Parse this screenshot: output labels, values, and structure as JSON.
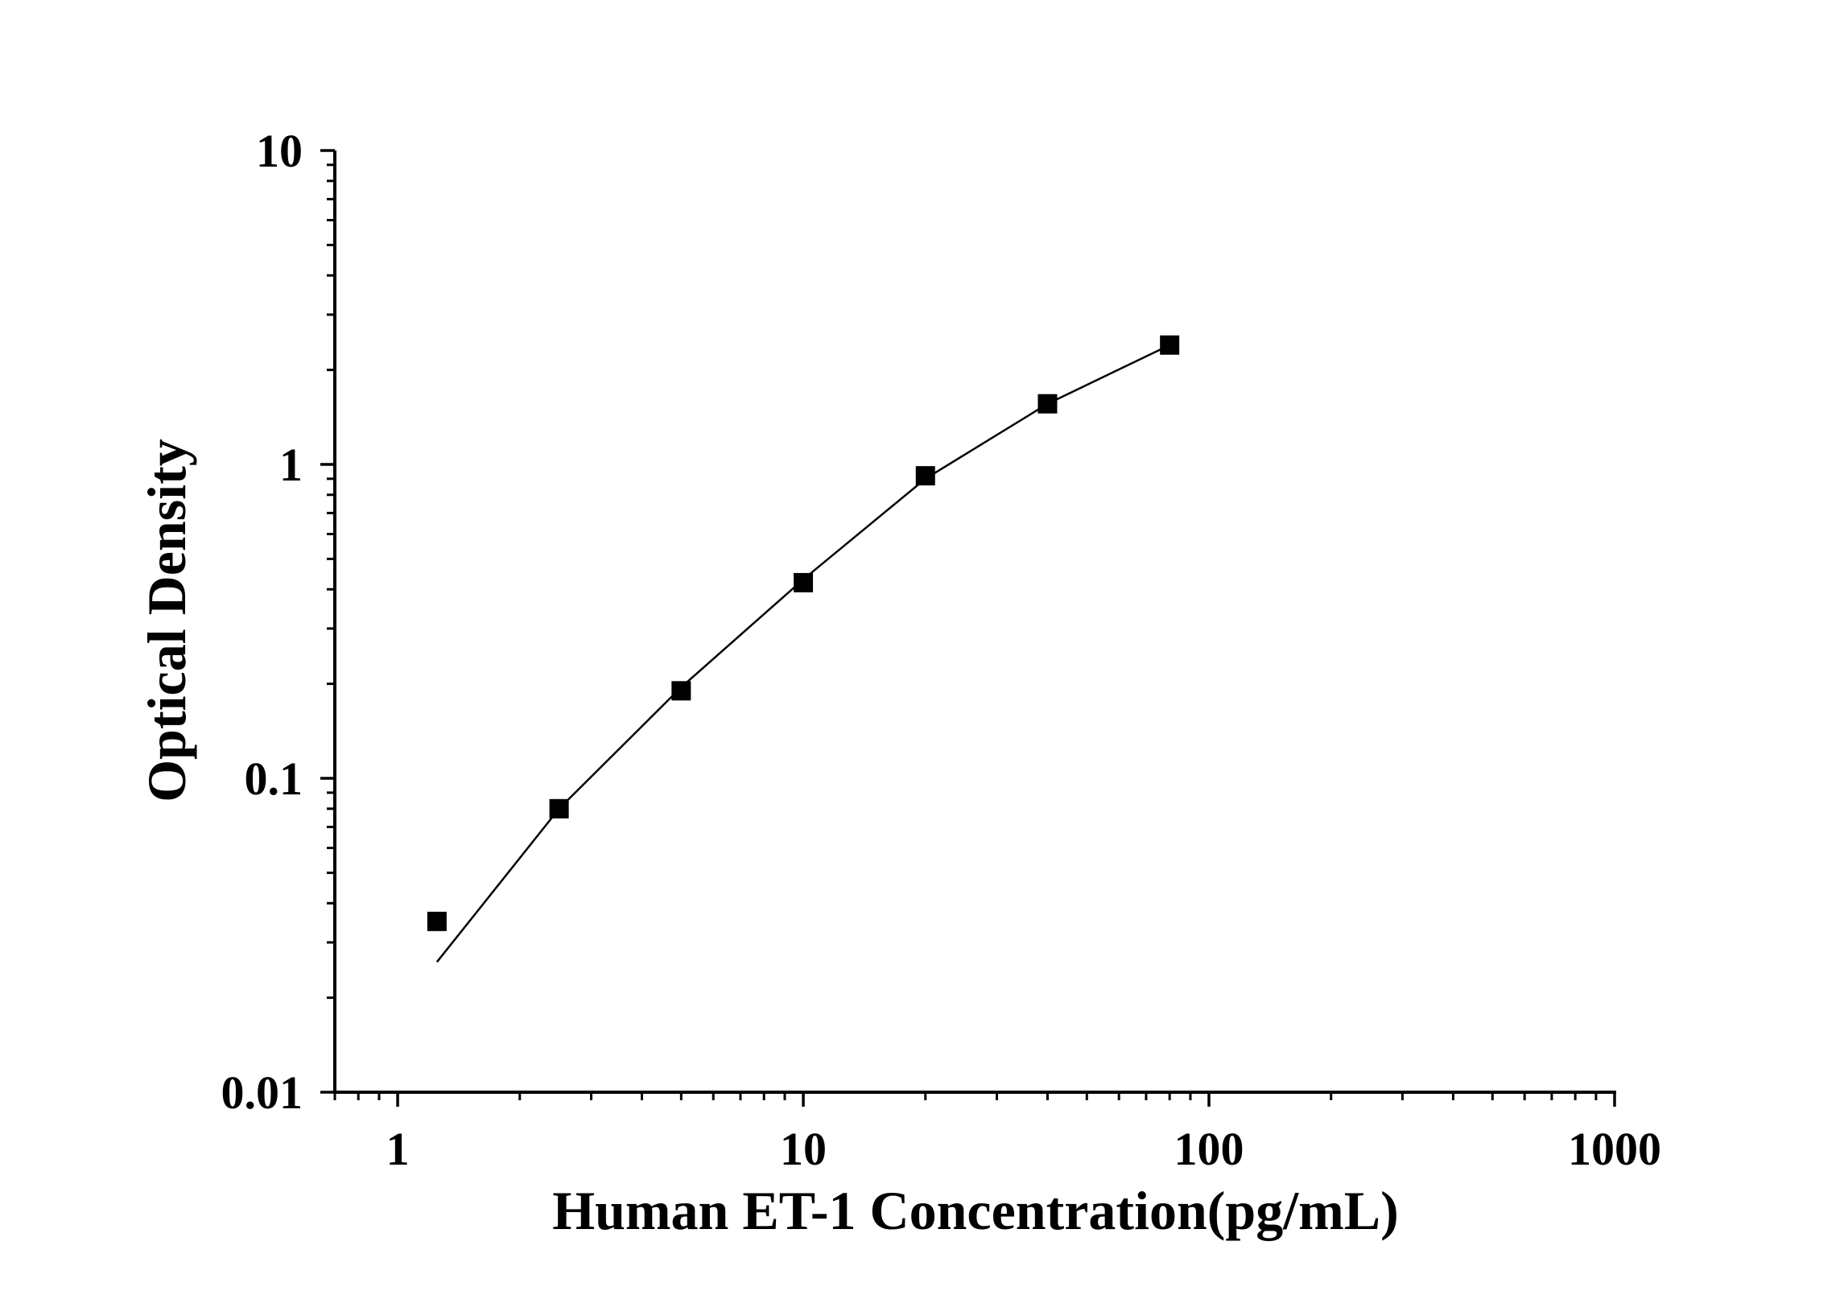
{
  "chart_data": {
    "type": "scatter",
    "title": "",
    "xlabel": "Human ET-1 Concentration(pg/mL)",
    "ylabel": "Optical Density",
    "x_scale": "log",
    "y_scale": "log",
    "xlim": [
      0.7,
      1000
    ],
    "ylim": [
      0.01,
      10
    ],
    "x_ticks": [
      {
        "value": 1,
        "label": "1"
      },
      {
        "value": 10,
        "label": "10"
      },
      {
        "value": 100,
        "label": "100"
      },
      {
        "value": 1000,
        "label": "1000"
      }
    ],
    "y_ticks": [
      {
        "value": 0.01,
        "label": "0.01"
      },
      {
        "value": 0.1,
        "label": "0.1"
      },
      {
        "value": 1,
        "label": "1"
      },
      {
        "value": 10,
        "label": "10"
      }
    ],
    "grid": false,
    "legend": "none",
    "series": [
      {
        "marker": "square",
        "color": "#000000",
        "points": [
          {
            "x": 1.25,
            "y": 0.035
          },
          {
            "x": 2.5,
            "y": 0.08
          },
          {
            "x": 5,
            "y": 0.19
          },
          {
            "x": 10,
            "y": 0.42
          },
          {
            "x": 20,
            "y": 0.92
          },
          {
            "x": 40,
            "y": 1.56
          },
          {
            "x": 80,
            "y": 2.4
          }
        ]
      },
      {
        "style": "fit-line",
        "color": "#000000",
        "points": [
          {
            "x": 1.25,
            "y": 0.026
          },
          {
            "x": 2.5,
            "y": 0.08
          },
          {
            "x": 5,
            "y": 0.195
          },
          {
            "x": 10,
            "y": 0.43
          },
          {
            "x": 20,
            "y": 0.9
          },
          {
            "x": 40,
            "y": 1.56
          },
          {
            "x": 80,
            "y": 2.4
          }
        ]
      }
    ]
  }
}
